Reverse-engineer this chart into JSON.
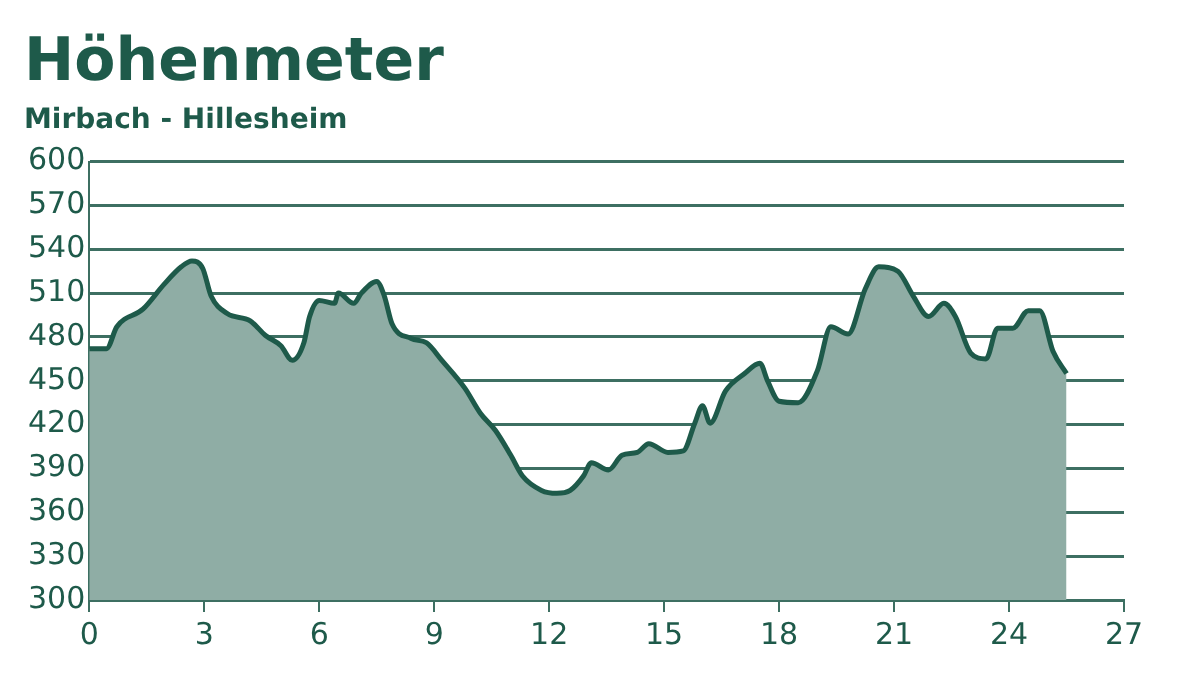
{
  "chart_data": {
    "type": "area",
    "title": "Höhenmeter",
    "subtitle": "Mirbach - Hillesheim",
    "x": [
      0,
      0.45,
      0.72,
      1.4,
      1.95,
      2.4,
      2.68,
      2.96,
      3.18,
      3.6,
      4.2,
      4.6,
      5.0,
      5.3,
      5.6,
      5.75,
      6.0,
      6.4,
      6.5,
      6.9,
      7.1,
      7.5,
      7.7,
      7.9,
      8.4,
      8.8,
      9.2,
      9.8,
      10.2,
      10.6,
      11.0,
      11.3,
      11.8,
      12.2,
      12.55,
      12.9,
      13.1,
      13.55,
      13.9,
      14.3,
      14.6,
      15.1,
      15.5,
      15.8,
      16.0,
      16.2,
      16.6,
      17.1,
      17.5,
      17.7,
      18.0,
      18.5,
      19.0,
      19.35,
      19.8,
      20.25,
      20.6,
      21.1,
      21.5,
      21.9,
      22.3,
      22.6,
      23.0,
      23.4,
      23.7,
      24.1,
      24.5,
      24.8,
      25.15,
      25.5
    ],
    "series": [
      {
        "color": "#1e5a4a",
        "values": [
          472,
          472,
          487,
          499,
          516,
          528,
          532,
          527,
          508,
          496,
          491,
          481,
          474,
          464,
          476,
          494,
          505,
          503,
          510,
          503,
          510,
          518,
          508,
          489,
          479,
          476,
          464,
          445,
          428,
          416,
          399,
          385,
          375,
          373,
          375,
          385,
          394,
          389,
          399,
          401,
          407,
          401,
          402,
          421,
          433,
          421,
          443,
          455,
          462,
          450,
          436,
          435,
          457,
          487,
          482,
          513,
          528,
          525,
          508,
          494,
          503,
          494,
          469,
          465,
          486,
          486,
          498,
          498,
          470,
          455
        ]
      }
    ],
    "xlim": [
      0,
      27
    ],
    "xticks": [
      0,
      3,
      6,
      9,
      12,
      15,
      18,
      21,
      24,
      27
    ],
    "ylim": [
      300,
      600
    ],
    "yticks": [
      300,
      330,
      360,
      390,
      420,
      450,
      480,
      510,
      540,
      570,
      600
    ],
    "grid": "y",
    "legend": false,
    "marker": "none",
    "line_style": "solid"
  }
}
